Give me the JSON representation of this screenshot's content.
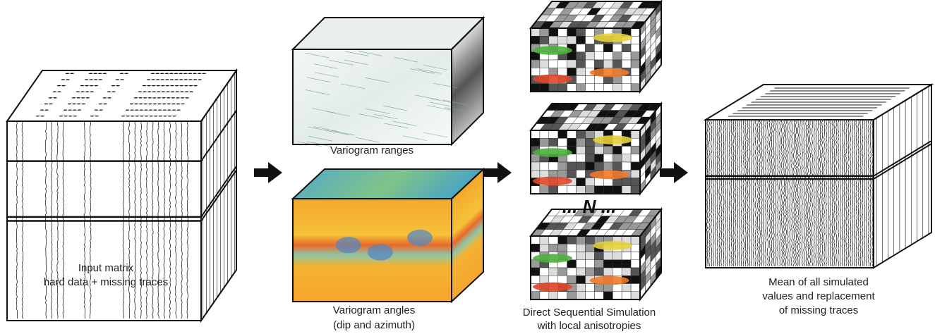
{
  "input_matrix": {
    "caption": [
      "Input matrix",
      "hard data + missing traces"
    ]
  },
  "variogram_ranges": {
    "caption": "Variogram ranges"
  },
  "variogram_angles": {
    "caption": [
      "Variogram angles",
      "(dip and azimuth)"
    ]
  },
  "simulation": {
    "ellipsis_label": "... N ...",
    "caption": [
      "Direct Sequential Simulation",
      "with local anisotropies"
    ]
  },
  "result": {
    "caption": [
      "Mean of all simulated",
      "values and replacement",
      "of missing traces"
    ]
  }
}
